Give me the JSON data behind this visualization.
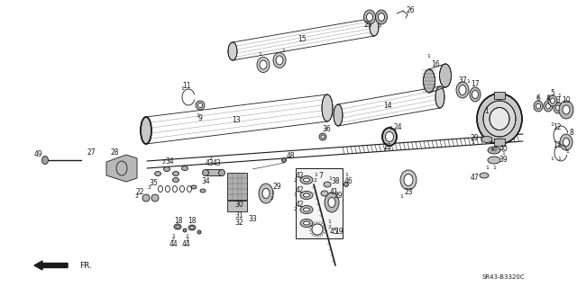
{
  "bg_color": "#ffffff",
  "fg_color": "#1a1a1a",
  "diagram_code": "SR43-B3320C",
  "figsize": [
    6.4,
    3.19
  ],
  "dpi": 100,
  "lw_main": 1.1,
  "lw_thin": 0.6,
  "fs_label": 5.5,
  "fs_qty": 4.5
}
